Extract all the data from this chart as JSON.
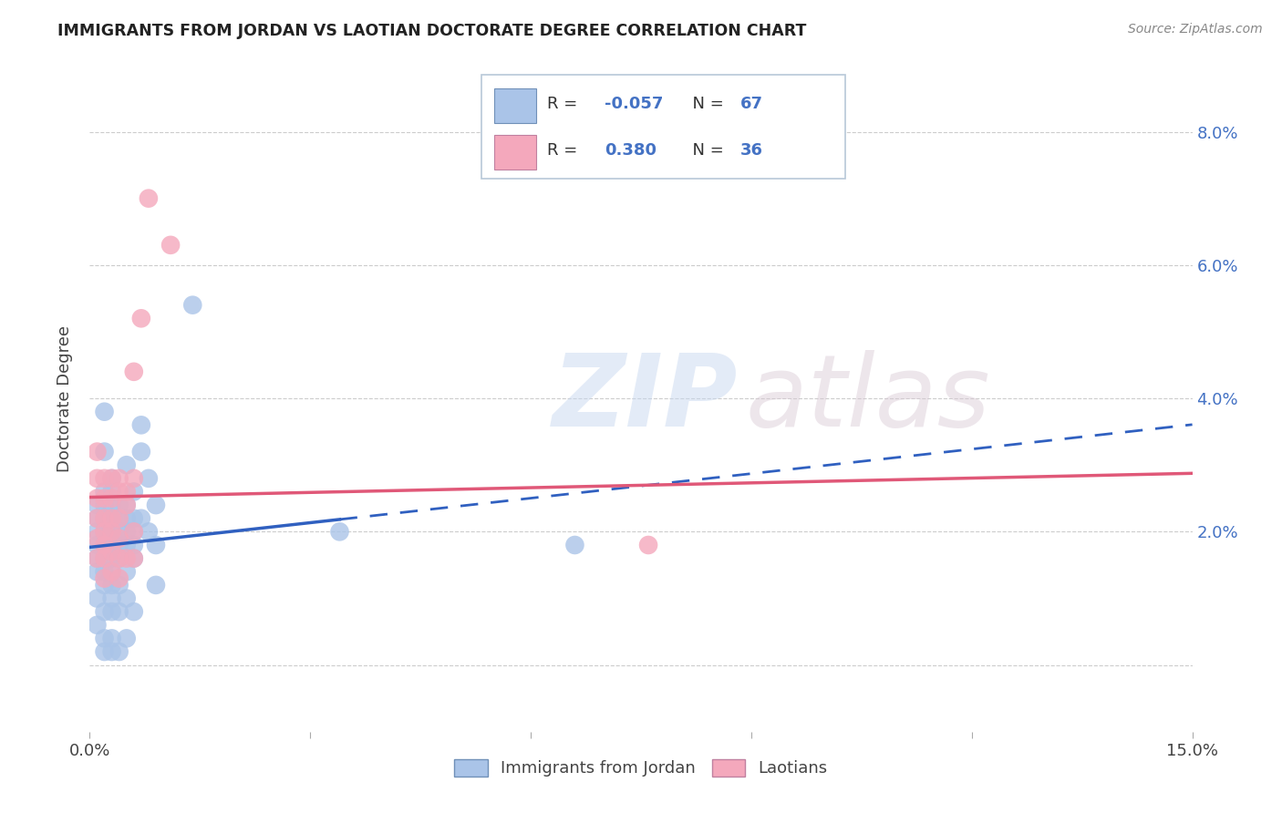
{
  "title": "IMMIGRANTS FROM JORDAN VS LAOTIAN DOCTORATE DEGREE CORRELATION CHART",
  "source_text": "Source: ZipAtlas.com",
  "ylabel": "Doctorate Degree",
  "xlim": [
    0.0,
    0.15
  ],
  "ylim": [
    -0.01,
    0.09
  ],
  "xticks": [
    0.0,
    0.03,
    0.06,
    0.09,
    0.12,
    0.15
  ],
  "xtick_labels": [
    "0.0%",
    "",
    "",
    "",
    "",
    "15.0%"
  ],
  "yticks": [
    0.0,
    0.02,
    0.04,
    0.06,
    0.08
  ],
  "ytick_labels_right": [
    "",
    "2.0%",
    "4.0%",
    "6.0%",
    "8.0%"
  ],
  "jordan_color": "#aac4e8",
  "laotian_color": "#f4a8bc",
  "jordan_line_color": "#3060c0",
  "laotian_line_color": "#e05878",
  "jordan_r": "-0.057",
  "jordan_n": "67",
  "laotian_r": "0.380",
  "laotian_n": "36",
  "background_color": "#ffffff",
  "grid_color": "#cccccc",
  "title_color": "#222222",
  "legend_text_color": "#4472c4",
  "legend_label_jordan": "Immigrants from Jordan",
  "legend_label_laotian": "Laotians",
  "jordan_points": [
    [
      0.001,
      0.024
    ],
    [
      0.001,
      0.022
    ],
    [
      0.001,
      0.02
    ],
    [
      0.001,
      0.018
    ],
    [
      0.001,
      0.016
    ],
    [
      0.001,
      0.014
    ],
    [
      0.001,
      0.01
    ],
    [
      0.001,
      0.006
    ],
    [
      0.002,
      0.038
    ],
    [
      0.002,
      0.032
    ],
    [
      0.002,
      0.026
    ],
    [
      0.002,
      0.024
    ],
    [
      0.002,
      0.022
    ],
    [
      0.002,
      0.02
    ],
    [
      0.002,
      0.018
    ],
    [
      0.002,
      0.016
    ],
    [
      0.002,
      0.014
    ],
    [
      0.002,
      0.012
    ],
    [
      0.002,
      0.008
    ],
    [
      0.002,
      0.004
    ],
    [
      0.002,
      0.002
    ],
    [
      0.003,
      0.028
    ],
    [
      0.003,
      0.026
    ],
    [
      0.003,
      0.024
    ],
    [
      0.003,
      0.022
    ],
    [
      0.003,
      0.02
    ],
    [
      0.003,
      0.018
    ],
    [
      0.003,
      0.016
    ],
    [
      0.003,
      0.014
    ],
    [
      0.003,
      0.012
    ],
    [
      0.003,
      0.01
    ],
    [
      0.003,
      0.008
    ],
    [
      0.003,
      0.004
    ],
    [
      0.003,
      0.002
    ],
    [
      0.004,
      0.024
    ],
    [
      0.004,
      0.022
    ],
    [
      0.004,
      0.02
    ],
    [
      0.004,
      0.018
    ],
    [
      0.004,
      0.016
    ],
    [
      0.004,
      0.012
    ],
    [
      0.004,
      0.008
    ],
    [
      0.004,
      0.002
    ],
    [
      0.005,
      0.03
    ],
    [
      0.005,
      0.024
    ],
    [
      0.005,
      0.022
    ],
    [
      0.005,
      0.02
    ],
    [
      0.005,
      0.018
    ],
    [
      0.005,
      0.014
    ],
    [
      0.005,
      0.01
    ],
    [
      0.005,
      0.004
    ],
    [
      0.006,
      0.026
    ],
    [
      0.006,
      0.022
    ],
    [
      0.006,
      0.02
    ],
    [
      0.006,
      0.018
    ],
    [
      0.006,
      0.016
    ],
    [
      0.006,
      0.008
    ],
    [
      0.007,
      0.036
    ],
    [
      0.007,
      0.032
    ],
    [
      0.007,
      0.022
    ],
    [
      0.008,
      0.028
    ],
    [
      0.008,
      0.02
    ],
    [
      0.009,
      0.024
    ],
    [
      0.009,
      0.018
    ],
    [
      0.009,
      0.012
    ],
    [
      0.014,
      0.054
    ],
    [
      0.034,
      0.02
    ],
    [
      0.066,
      0.018
    ]
  ],
  "laotian_points": [
    [
      0.001,
      0.032
    ],
    [
      0.001,
      0.028
    ],
    [
      0.001,
      0.025
    ],
    [
      0.001,
      0.022
    ],
    [
      0.001,
      0.019
    ],
    [
      0.001,
      0.016
    ],
    [
      0.002,
      0.028
    ],
    [
      0.002,
      0.025
    ],
    [
      0.002,
      0.022
    ],
    [
      0.002,
      0.02
    ],
    [
      0.002,
      0.018
    ],
    [
      0.002,
      0.016
    ],
    [
      0.002,
      0.013
    ],
    [
      0.003,
      0.028
    ],
    [
      0.003,
      0.025
    ],
    [
      0.003,
      0.022
    ],
    [
      0.003,
      0.02
    ],
    [
      0.003,
      0.017
    ],
    [
      0.003,
      0.014
    ],
    [
      0.004,
      0.028
    ],
    [
      0.004,
      0.026
    ],
    [
      0.004,
      0.022
    ],
    [
      0.004,
      0.019
    ],
    [
      0.004,
      0.016
    ],
    [
      0.004,
      0.013
    ],
    [
      0.005,
      0.026
    ],
    [
      0.005,
      0.024
    ],
    [
      0.005,
      0.016
    ],
    [
      0.006,
      0.044
    ],
    [
      0.006,
      0.028
    ],
    [
      0.006,
      0.02
    ],
    [
      0.006,
      0.016
    ],
    [
      0.007,
      0.052
    ],
    [
      0.008,
      0.07
    ],
    [
      0.011,
      0.063
    ],
    [
      0.076,
      0.018
    ]
  ],
  "jordan_line_solid_end": 0.034,
  "jordan_line_x_start": 0.0,
  "jordan_line_x_end": 0.15,
  "laotian_line_x_start": 0.0,
  "laotian_line_x_end": 0.15
}
